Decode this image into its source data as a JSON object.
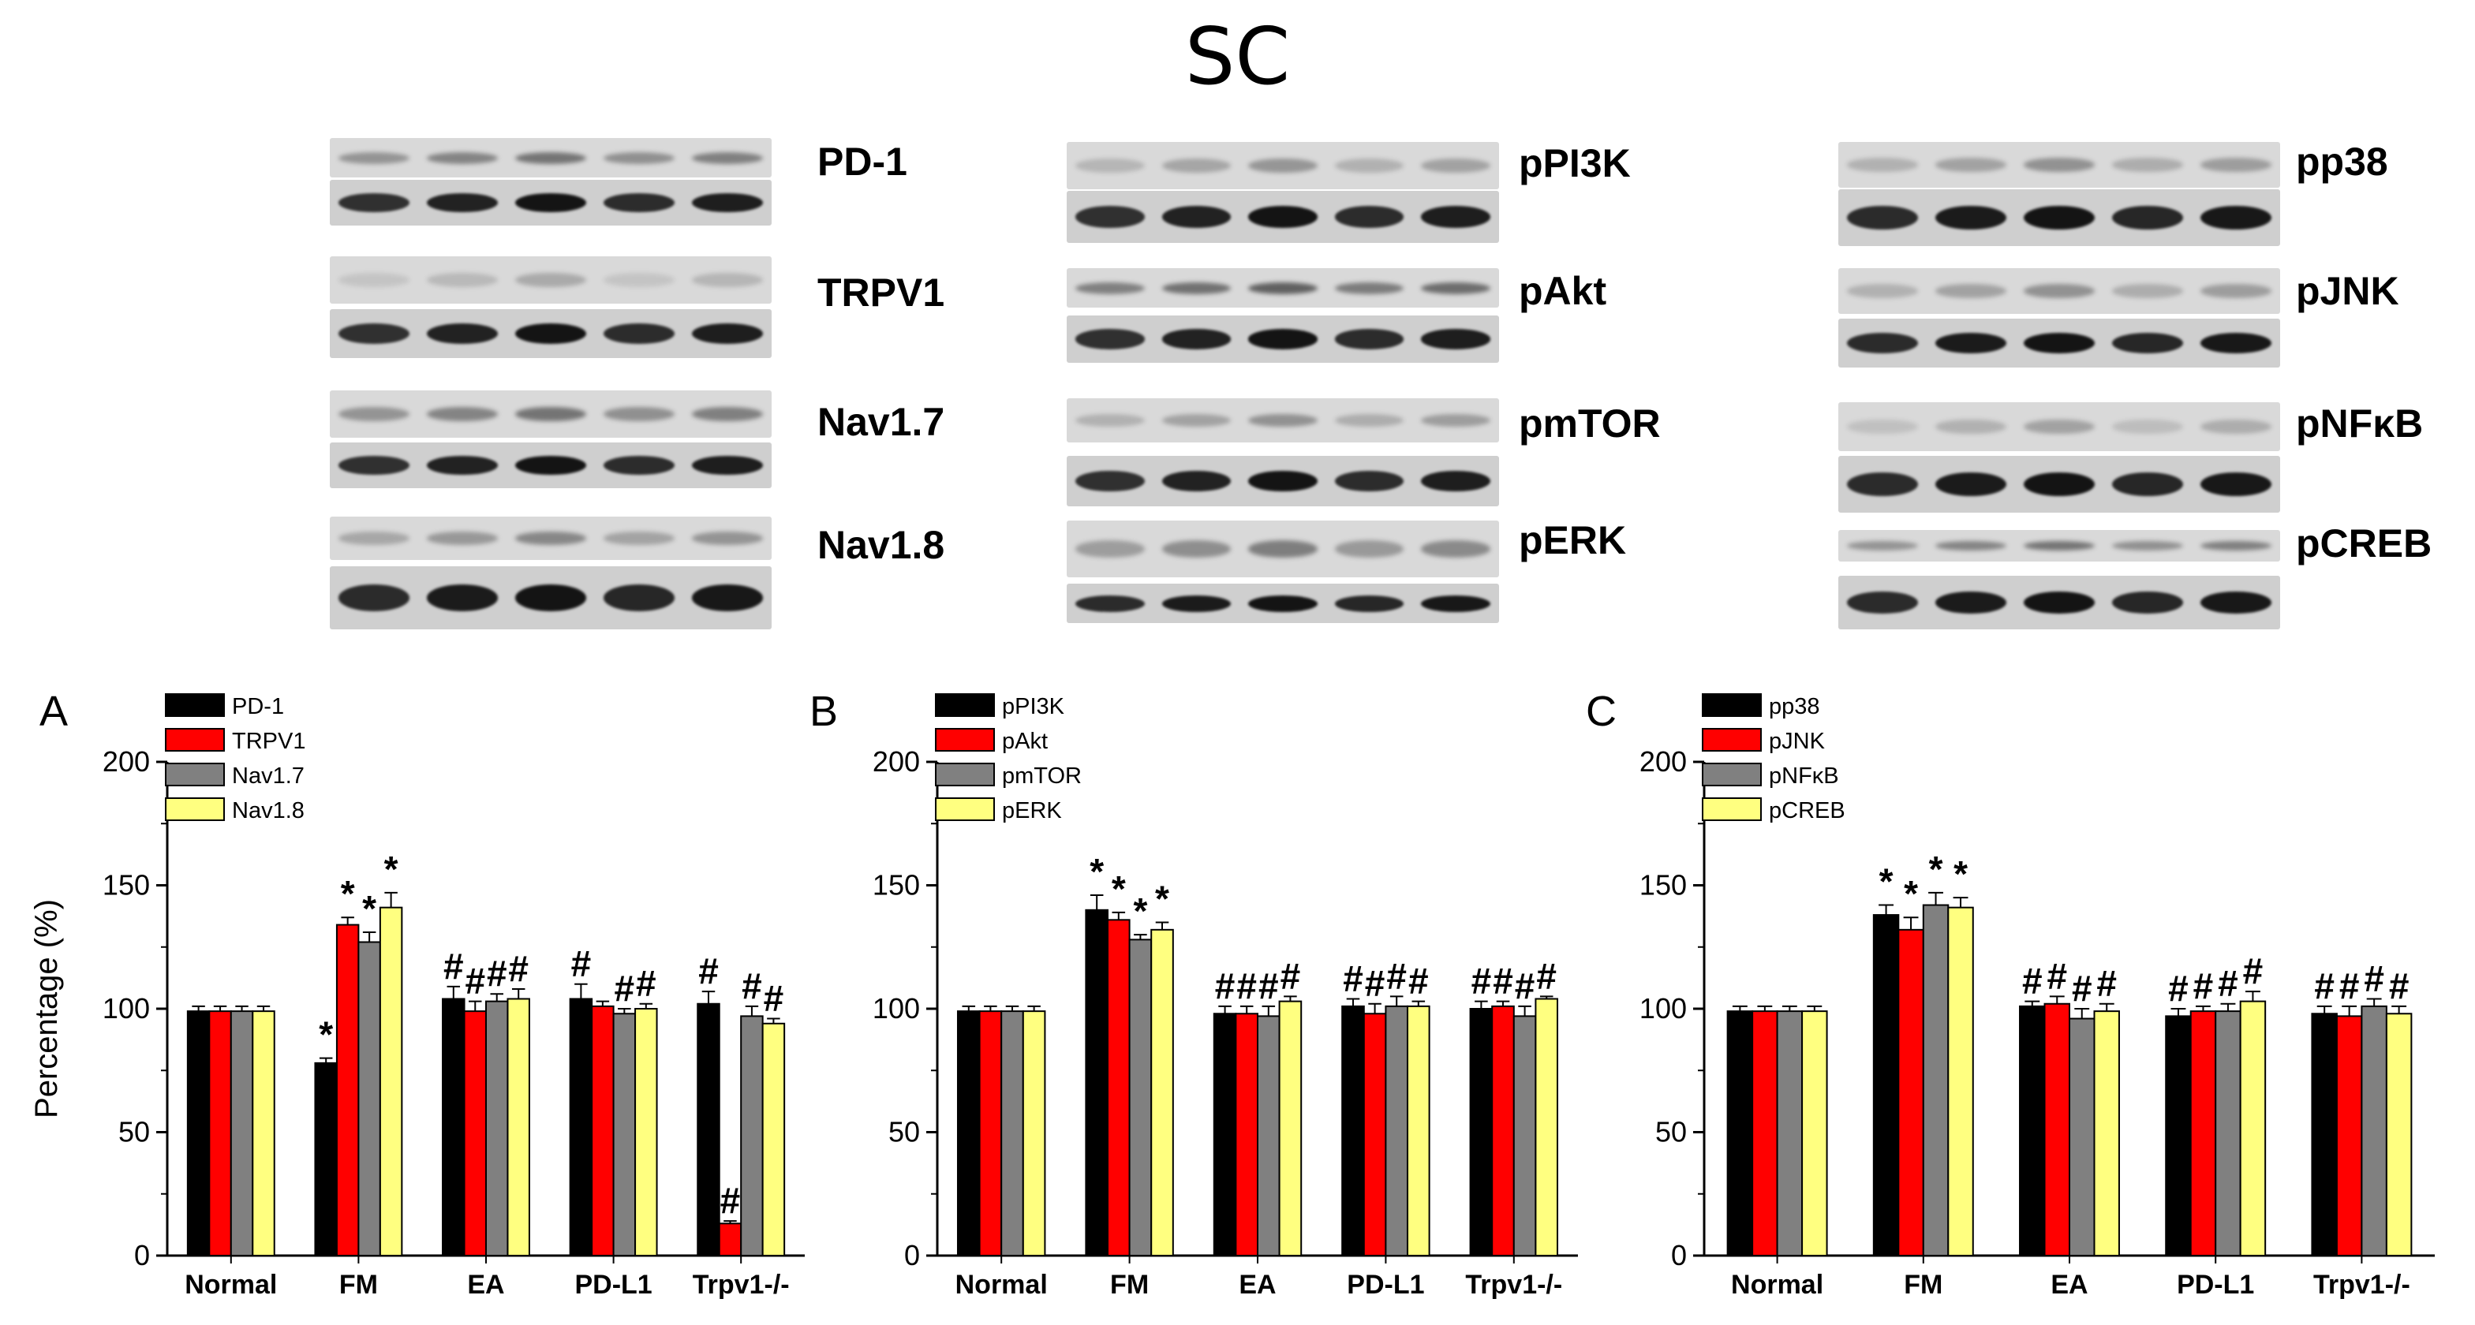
{
  "figure": {
    "title": "SC"
  },
  "blots": [
    {
      "id": "col-left",
      "labels": [
        "PD-1",
        "TRPV1",
        "Nav1.7",
        "Nav1.8"
      ]
    },
    {
      "id": "col-middle",
      "labels": [
        "pPI3K",
        "pAkt",
        "pmTOR",
        "pERK"
      ]
    },
    {
      "id": "col-right",
      "labels": [
        "pp38",
        "pJNK",
        "pNFκB",
        "pCREB"
      ]
    }
  ],
  "colors": {
    "black": "#000000",
    "red": "#ff0000",
    "gray": "#808080",
    "yellow": "#ffff80"
  },
  "chart_data": [
    {
      "panel": "A",
      "type": "bar",
      "categories": [
        "Normal",
        "FM",
        "EA",
        "PD-L1",
        "Trpv1-/-"
      ],
      "ylabel": "Percentage (%)",
      "ylim": [
        0,
        200
      ],
      "yticks": [
        0,
        50,
        100,
        150,
        200
      ],
      "legend_position": "top-left",
      "series": [
        {
          "name": "PD-1",
          "color": "#000000",
          "values": [
            99,
            78,
            104,
            104,
            102
          ],
          "err": [
            2,
            2,
            5,
            6,
            5
          ],
          "marks": [
            "",
            "*",
            "#",
            "#",
            "#"
          ]
        },
        {
          "name": "TRPV1",
          "color": "#ff0000",
          "values": [
            99,
            134,
            99,
            101,
            13
          ],
          "err": [
            2,
            3,
            4,
            2,
            1
          ],
          "marks": [
            "",
            "*",
            "#",
            "",
            "#"
          ]
        },
        {
          "name": "Nav1.7",
          "color": "#808080",
          "values": [
            99,
            127,
            103,
            98,
            97
          ],
          "err": [
            2,
            4,
            3,
            2,
            4
          ],
          "marks": [
            "",
            "*",
            "#",
            "#",
            "#"
          ]
        },
        {
          "name": "Nav1.8",
          "color": "#ffff80",
          "values": [
            99,
            141,
            104,
            100,
            94
          ],
          "err": [
            2,
            6,
            4,
            2,
            2
          ],
          "marks": [
            "",
            "*",
            "#",
            "#",
            "#"
          ]
        }
      ]
    },
    {
      "panel": "B",
      "type": "bar",
      "categories": [
        "Normal",
        "FM",
        "EA",
        "PD-L1",
        "Trpv1-/-"
      ],
      "ylabel": "",
      "ylim": [
        0,
        200
      ],
      "yticks": [
        0,
        50,
        100,
        150,
        200
      ],
      "legend_position": "top-left",
      "series": [
        {
          "name": "pPI3K",
          "color": "#000000",
          "values": [
            99,
            140,
            98,
            101,
            100
          ],
          "err": [
            2,
            6,
            3,
            3,
            3
          ],
          "marks": [
            "",
            "*",
            "#",
            "#",
            "#"
          ]
        },
        {
          "name": "pAkt",
          "color": "#ff0000",
          "values": [
            99,
            136,
            98,
            98,
            101
          ],
          "err": [
            2,
            3,
            3,
            4,
            2
          ],
          "marks": [
            "",
            "*",
            "#",
            "#",
            "#"
          ]
        },
        {
          "name": "pmTOR",
          "color": "#808080",
          "values": [
            99,
            128,
            97,
            101,
            97
          ],
          "err": [
            2,
            2,
            4,
            4,
            4
          ],
          "marks": [
            "",
            "*",
            "#",
            "#",
            "#"
          ]
        },
        {
          "name": "pERK",
          "color": "#ffff80",
          "values": [
            99,
            132,
            103,
            101,
            104
          ],
          "err": [
            2,
            3,
            2,
            2,
            1
          ],
          "marks": [
            "",
            "*",
            "#",
            "#",
            "#"
          ]
        }
      ]
    },
    {
      "panel": "C",
      "type": "bar",
      "categories": [
        "Normal",
        "FM",
        "EA",
        "PD-L1",
        "Trpv1-/-"
      ],
      "ylabel": "",
      "ylim": [
        0,
        200
      ],
      "yticks": [
        0,
        50,
        100,
        150,
        200
      ],
      "legend_position": "top-left",
      "series": [
        {
          "name": "pp38",
          "color": "#000000",
          "values": [
            99,
            138,
            101,
            97,
            98
          ],
          "err": [
            2,
            4,
            2,
            3,
            3
          ],
          "marks": [
            "",
            "*",
            "#",
            "#",
            "#"
          ]
        },
        {
          "name": "pJNK",
          "color": "#ff0000",
          "values": [
            99,
            132,
            102,
            99,
            97
          ],
          "err": [
            2,
            5,
            3,
            2,
            4
          ],
          "marks": [
            "",
            "*",
            "#",
            "#",
            "#"
          ]
        },
        {
          "name": "pNFκB",
          "color": "#808080",
          "values": [
            99,
            142,
            96,
            99,
            101
          ],
          "err": [
            2,
            5,
            4,
            3,
            3
          ],
          "marks": [
            "",
            "*",
            "#",
            "#",
            "#"
          ]
        },
        {
          "name": "pCREB",
          "color": "#ffff80",
          "values": [
            99,
            141,
            99,
            103,
            98
          ],
          "err": [
            2,
            4,
            3,
            4,
            3
          ],
          "marks": [
            "",
            "*",
            "#",
            "#",
            "#"
          ]
        }
      ]
    }
  ]
}
